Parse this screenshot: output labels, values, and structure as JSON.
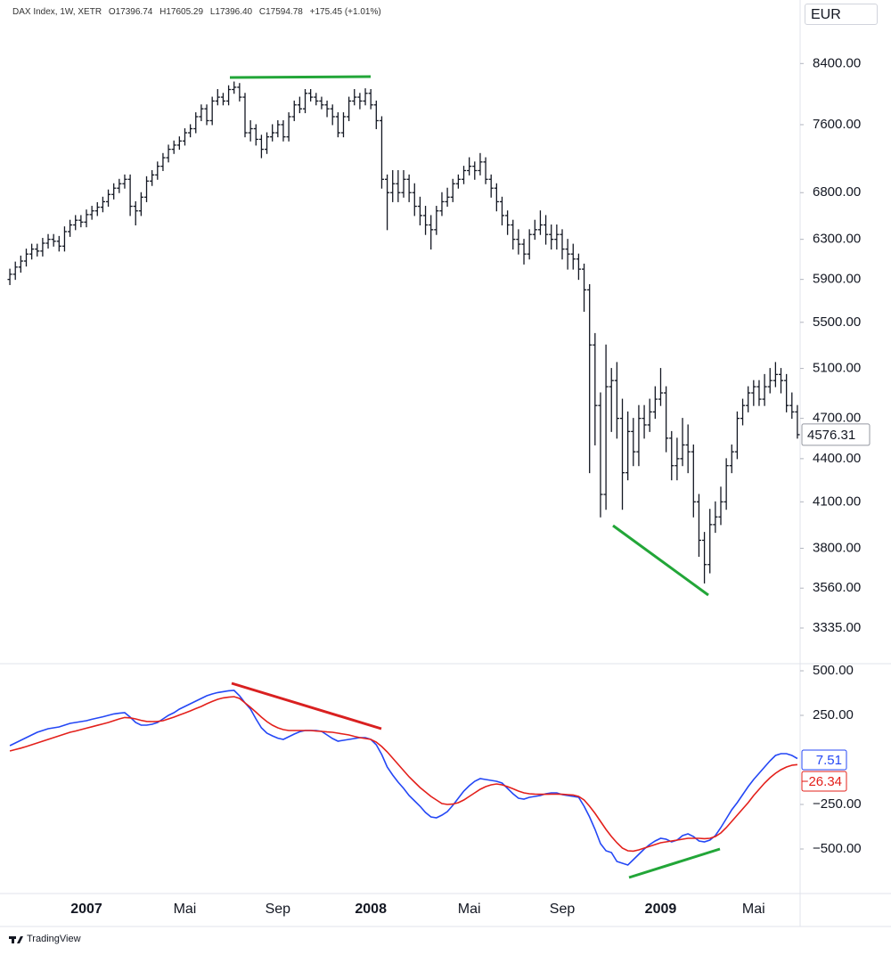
{
  "chart_data": [
    {
      "type": "ohlc",
      "title": "DAX Index, 1W, XETR",
      "header_values": [
        {
          "value": 17396.74,
          "label": "O17396.74"
        },
        {
          "value": 17605.29,
          "label": "H17605.29"
        },
        {
          "value": 17396.4,
          "label": "L17396.40"
        },
        {
          "value": 17594.78,
          "label": "C17594.78"
        },
        {
          "value": 175.45,
          "label": "+175.45 (+1.01%)"
        }
      ],
      "currency": "EUR",
      "color": "#131722",
      "log": true,
      "ylim": [
        3146,
        9320
      ],
      "yticks": [
        {
          "value": 8400,
          "label": "8400.00"
        },
        {
          "value": 7600,
          "label": "7600.00"
        },
        {
          "value": 6800,
          "label": "6800.00"
        },
        {
          "value": 6300,
          "label": "6300.00"
        },
        {
          "value": 5900,
          "label": "5900.00"
        },
        {
          "value": 5500,
          "label": "5500.00"
        },
        {
          "value": 5100,
          "label": "5100.00"
        },
        {
          "value": 4700,
          "label": "4700.00"
        },
        {
          "value": 4400,
          "label": "4400.00"
        },
        {
          "value": 4100,
          "label": "4100.00"
        },
        {
          "value": 3800,
          "label": "3800.00"
        },
        {
          "value": 3560,
          "label": "3560.00"
        },
        {
          "value": 3335,
          "label": "3335.00"
        }
      ],
      "categories": [
        null,
        null,
        null,
        null,
        null,
        null,
        null,
        null,
        null,
        null,
        null,
        null,
        null,
        null,
        "2007",
        null,
        null,
        null,
        null,
        null,
        null,
        null,
        null,
        null,
        null,
        null,
        null,
        null,
        null,
        null,
        null,
        null,
        "Mai",
        null,
        null,
        null,
        null,
        null,
        null,
        null,
        null,
        null,
        null,
        null,
        null,
        null,
        null,
        null,
        null,
        "Sep",
        null,
        null,
        null,
        null,
        null,
        null,
        null,
        null,
        null,
        null,
        null,
        null,
        null,
        null,
        null,
        null,
        "2008",
        null,
        null,
        null,
        null,
        null,
        null,
        null,
        null,
        null,
        null,
        null,
        null,
        null,
        null,
        null,
        null,
        null,
        "Mai",
        null,
        null,
        null,
        null,
        null,
        null,
        null,
        null,
        null,
        null,
        null,
        null,
        null,
        null,
        null,
        null,
        "Sep",
        null,
        null,
        null,
        null,
        null,
        null,
        null,
        null,
        null,
        null,
        null,
        null,
        null,
        null,
        null,
        null,
        null,
        "2009",
        null,
        null,
        null,
        null,
        null,
        null,
        null,
        null,
        null,
        null,
        null,
        null,
        null,
        null,
        null,
        null,
        "Mai",
        null,
        null,
        null,
        null,
        null,
        null,
        null,
        null
      ],
      "open": [
        5900,
        5950,
        6020,
        6080,
        6150,
        6200,
        6180,
        6260,
        6300,
        6280,
        6230,
        6380,
        6450,
        6500,
        6480,
        6560,
        6600,
        6640,
        6700,
        6780,
        6850,
        6900,
        6950,
        6650,
        6600,
        6750,
        6930,
        7000,
        7100,
        7200,
        7300,
        7350,
        7400,
        7500,
        7550,
        7700,
        7800,
        7650,
        7900,
        7950,
        7900,
        8050,
        8080,
        7950,
        7500,
        7550,
        7420,
        7300,
        7450,
        7500,
        7600,
        7450,
        7700,
        7850,
        7800,
        8000,
        7950,
        7900,
        7850,
        7800,
        7700,
        7500,
        7700,
        7900,
        7950,
        7900,
        8000,
        7850,
        7650,
        6950,
        6800,
        6900,
        6800,
        6950,
        6800,
        6650,
        6550,
        6450,
        6400,
        6600,
        6700,
        6750,
        6900,
        6950,
        7050,
        7100,
        7050,
        7150,
        6950,
        6850,
        6700,
        6550,
        6450,
        6300,
        6250,
        6150,
        6350,
        6400,
        6450,
        6350,
        6300,
        6350,
        6200,
        6150,
        6100,
        6000,
        5800,
        5300,
        4800,
        4150,
        4950,
        5000,
        4700,
        4300,
        4600,
        4450,
        4700,
        4650,
        4750,
        4850,
        4900,
        4550,
        4350,
        4400,
        4500,
        4450,
        4100,
        3850,
        3700,
        3950,
        4000,
        4100,
        4350,
        4450,
        4700,
        4800,
        4900,
        4950,
        4850,
        4950,
        5000,
        5050,
        5000,
        4800,
        4750
      ],
      "high": [
        6000,
        6070,
        6130,
        6200,
        6250,
        6250,
        6310,
        6350,
        6350,
        6330,
        6430,
        6500,
        6550,
        6550,
        6610,
        6650,
        6690,
        6750,
        6830,
        6900,
        6950,
        7000,
        7000,
        6700,
        6800,
        6980,
        7050,
        7150,
        7250,
        7350,
        7400,
        7450,
        7550,
        7600,
        7750,
        7850,
        7850,
        7950,
        8050,
        8000,
        8100,
        8150,
        8130,
        8000,
        7650,
        7600,
        7470,
        7500,
        7600,
        7650,
        7650,
        7750,
        7900,
        7950,
        8050,
        8050,
        8000,
        7950,
        7900,
        7850,
        7750,
        7750,
        7950,
        8050,
        8000,
        8060,
        8050,
        7900,
        7700,
        7000,
        7050,
        7050,
        7050,
        7000,
        6900,
        6750,
        6650,
        6550,
        6650,
        6800,
        6850,
        6950,
        7000,
        7100,
        7200,
        7150,
        7250,
        7200,
        7000,
        6900,
        6750,
        6600,
        6500,
        6400,
        6300,
        6400,
        6500,
        6600,
        6550,
        6450,
        6450,
        6400,
        6300,
        6250,
        6150,
        6050,
        5850,
        5400,
        4900,
        5300,
        5100,
        5150,
        4850,
        4750,
        4700,
        4800,
        4800,
        4850,
        4950,
        5100,
        4950,
        4600,
        4550,
        4700,
        4650,
        4500,
        4150,
        3900,
        4050,
        4100,
        4200,
        4400,
        4500,
        4750,
        4850,
        4950,
        5000,
        5000,
        5050,
        5100,
        5150,
        5100,
        5050,
        4900,
        4800
      ],
      "low": [
        5850,
        5900,
        5970,
        6030,
        6100,
        6130,
        6130,
        6210,
        6230,
        6180,
        6180,
        6330,
        6400,
        6430,
        6430,
        6510,
        6550,
        6590,
        6650,
        6730,
        6800,
        6850,
        6550,
        6450,
        6550,
        6700,
        6880,
        6950,
        7050,
        7150,
        7250,
        7300,
        7350,
        7450,
        7500,
        7650,
        7600,
        7600,
        7850,
        7850,
        7850,
        8000,
        7900,
        7450,
        7400,
        7350,
        7200,
        7250,
        7400,
        7450,
        7400,
        7400,
        7650,
        7750,
        7750,
        7900,
        7850,
        7800,
        7700,
        7600,
        7450,
        7450,
        7650,
        7850,
        7800,
        7850,
        7800,
        7550,
        6850,
        6400,
        6700,
        6700,
        6750,
        6700,
        6550,
        6450,
        6350,
        6200,
        6350,
        6550,
        6650,
        6700,
        6850,
        6900,
        7000,
        6950,
        7000,
        6900,
        6750,
        6600,
        6450,
        6350,
        6200,
        6150,
        6050,
        6100,
        6300,
        6350,
        6250,
        6200,
        6200,
        6100,
        6000,
        6000,
        5900,
        5600,
        4300,
        4500,
        4000,
        4050,
        4600,
        4550,
        4050,
        4250,
        4350,
        4350,
        4550,
        4600,
        4700,
        4800,
        4450,
        4250,
        4250,
        4350,
        4300,
        4000,
        3750,
        3590,
        3650,
        3900,
        3950,
        4050,
        4300,
        4400,
        4650,
        4750,
        4800,
        4800,
        4800,
        4900,
        4950,
        4900,
        4750,
        4700,
        4550
      ],
      "close": [
        5950,
        6020,
        6080,
        6150,
        6200,
        6180,
        6260,
        6300,
        6280,
        6230,
        6380,
        6450,
        6500,
        6480,
        6560,
        6600,
        6640,
        6700,
        6780,
        6850,
        6900,
        6950,
        6650,
        6600,
        6750,
        6930,
        7000,
        7100,
        7200,
        7300,
        7350,
        7400,
        7500,
        7550,
        7700,
        7800,
        7650,
        7900,
        7950,
        7900,
        8050,
        8080,
        7950,
        7500,
        7550,
        7420,
        7300,
        7450,
        7500,
        7600,
        7450,
        7700,
        7850,
        7800,
        8000,
        7950,
        7900,
        7850,
        7800,
        7700,
        7500,
        7700,
        7900,
        7950,
        7900,
        8000,
        7850,
        7650,
        6950,
        6800,
        6900,
        6800,
        6950,
        6800,
        6650,
        6550,
        6450,
        6400,
        6600,
        6700,
        6750,
        6900,
        6950,
        7050,
        7100,
        7050,
        7150,
        6950,
        6850,
        6700,
        6550,
        6450,
        6300,
        6250,
        6150,
        6350,
        6400,
        6450,
        6350,
        6300,
        6350,
        6200,
        6150,
        6100,
        6000,
        5800,
        5300,
        4800,
        4150,
        4950,
        5000,
        4700,
        4300,
        4600,
        4450,
        4700,
        4650,
        4750,
        4850,
        4900,
        4550,
        4350,
        4400,
        4500,
        4450,
        4100,
        3850,
        3700,
        3950,
        4000,
        4100,
        4350,
        4450,
        4700,
        4800,
        4900,
        4950,
        4850,
        4950,
        5000,
        5050,
        5000,
        4800,
        4750,
        4576.31
      ]
    },
    {
      "type": "line",
      "ylim": [
        -750,
        540
      ],
      "yticks": [
        {
          "value": 500,
          "label": "500.00"
        },
        {
          "value": 250,
          "label": "250.00"
        },
        {
          "value": -250,
          "label": "−250.00"
        },
        {
          "value": -500,
          "label": "−500.00"
        }
      ],
      "series": [
        {
          "color": "#2447f5",
          "values": [
            80,
            95,
            110,
            125,
            140,
            155,
            165,
            175,
            180,
            185,
            195,
            205,
            210,
            215,
            220,
            228,
            235,
            242,
            250,
            258,
            262,
            265,
            240,
            210,
            195,
            195,
            200,
            210,
            230,
            250,
            265,
            285,
            300,
            315,
            330,
            345,
            360,
            370,
            378,
            383,
            388,
            390,
            360,
            320,
            285,
            230,
            180,
            150,
            135,
            122,
            115,
            130,
            145,
            158,
            165,
            165,
            165,
            160,
            140,
            120,
            105,
            110,
            115,
            120,
            125,
            125,
            115,
            85,
            30,
            -40,
            -85,
            -125,
            -160,
            -200,
            -230,
            -260,
            -295,
            -320,
            -325,
            -310,
            -290,
            -255,
            -215,
            -175,
            -145,
            -120,
            -105,
            -110,
            -115,
            -120,
            -130,
            -160,
            -190,
            -215,
            -220,
            -210,
            -205,
            -200,
            -190,
            -185,
            -185,
            -195,
            -200,
            -205,
            -210,
            -260,
            -320,
            -390,
            -470,
            -510,
            -520,
            -570,
            -580,
            -590,
            -560,
            -530,
            -500,
            -475,
            -455,
            -440,
            -445,
            -460,
            -450,
            -425,
            -415,
            -430,
            -455,
            -460,
            -450,
            -425,
            -380,
            -330,
            -280,
            -240,
            -195,
            -150,
            -110,
            -75,
            -40,
            -5,
            25,
            35,
            35,
            25,
            7.51
          ]
        },
        {
          "color": "#e3201b",
          "last_label": "−26.34",
          "values": [
            50,
            58,
            66,
            75,
            85,
            95,
            105,
            115,
            125,
            135,
            145,
            155,
            162,
            170,
            178,
            186,
            194,
            202,
            210,
            220,
            230,
            238,
            236,
            230,
            222,
            216,
            215,
            216,
            220,
            230,
            240,
            252,
            263,
            275,
            288,
            300,
            315,
            328,
            340,
            348,
            352,
            355,
            345,
            320,
            295,
            268,
            240,
            215,
            195,
            180,
            170,
            165,
            165,
            165,
            165,
            165,
            162,
            160,
            157,
            155,
            150,
            145,
            140,
            132,
            125,
            120,
            115,
            100,
            75,
            45,
            10,
            -25,
            -60,
            -95,
            -125,
            -155,
            -180,
            -205,
            -225,
            -245,
            -250,
            -248,
            -240,
            -225,
            -205,
            -185,
            -165,
            -150,
            -140,
            -135,
            -140,
            -150,
            -162,
            -175,
            -185,
            -190,
            -192,
            -193,
            -193,
            -192,
            -192,
            -193,
            -195,
            -197,
            -205,
            -225,
            -260,
            -300,
            -345,
            -390,
            -430,
            -465,
            -495,
            -510,
            -512,
            -505,
            -495,
            -485,
            -475,
            -465,
            -460,
            -455,
            -450,
            -445,
            -440,
            -440,
            -440,
            -442,
            -440,
            -430,
            -410,
            -380,
            -345,
            -310,
            -275,
            -240,
            -200,
            -165,
            -130,
            -100,
            -75,
            -55,
            -40,
            -30,
            -26.34
          ]
        }
      ]
    }
  ],
  "branding": "TradingView"
}
